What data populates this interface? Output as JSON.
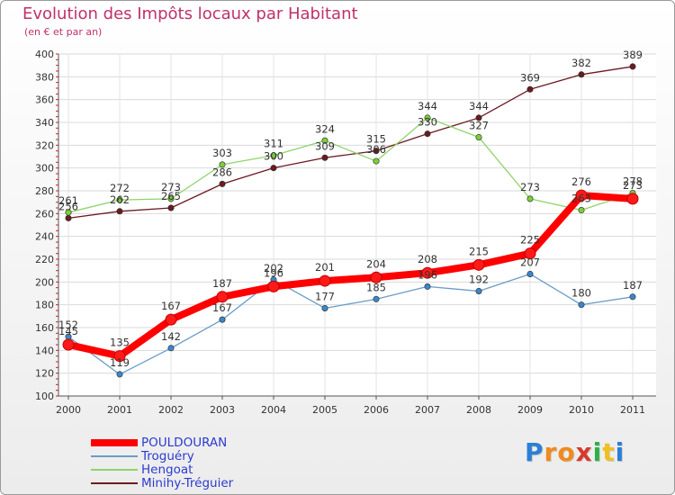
{
  "header": {
    "title": "Evolution des Impôts locaux par Habitant",
    "subtitle": "(en € et par an)"
  },
  "logo": {
    "text": "Proxiti",
    "letters": [
      "P",
      "r",
      "o",
      "x",
      "i",
      "t",
      "i"
    ],
    "colors": [
      "#2b7fd6",
      "#f08a1c",
      "#f08a1c",
      "#d63a2b",
      "#2bb04a",
      "#f0c01c",
      "#2b7fd6"
    ]
  },
  "chart_data": {
    "type": "line",
    "title": "Evolution des Impôts locaux par Habitant",
    "subtitle": "(en € et par an)",
    "xlabel": "",
    "ylabel": "",
    "ylim": [
      100,
      400
    ],
    "yticks": [
      100,
      120,
      140,
      160,
      180,
      200,
      220,
      240,
      260,
      280,
      300,
      320,
      340,
      360,
      380,
      400
    ],
    "categories": [
      "2000",
      "2001",
      "2002",
      "2003",
      "2004",
      "2005",
      "2006",
      "2007",
      "2008",
      "2009",
      "2010",
      "2011"
    ],
    "grid": true,
    "legend": "bottom-left",
    "series": [
      {
        "name": "Minihy-Tréguier",
        "color": "#6b1a22",
        "marker": "#6b1a22",
        "width": 1.3,
        "values": [
          256,
          262,
          265,
          286,
          300,
          309,
          315,
          330,
          344,
          369,
          382,
          389
        ],
        "labels": [
          "256",
          "262",
          "265",
          "286",
          "300",
          "309",
          "315",
          "330",
          "344",
          "369",
          "382",
          "389"
        ]
      },
      {
        "name": "Hengoat",
        "color": "#8fd36a",
        "marker": "#7ccf3a",
        "width": 1.3,
        "values": [
          261,
          272,
          273,
          303,
          311,
          324,
          306,
          344,
          327,
          273,
          263,
          278
        ],
        "labels": [
          "261",
          "272",
          "273",
          "303",
          "311",
          "324",
          "306",
          "344",
          "327",
          "273",
          "263",
          "278"
        ]
      },
      {
        "name": "Troguéry",
        "color": "#6a9cc8",
        "marker": "#3b86c9",
        "width": 1.3,
        "values": [
          152,
          119,
          142,
          167,
          202,
          177,
          185,
          196,
          192,
          207,
          180,
          187
        ],
        "labels": [
          "152",
          "119",
          "142",
          "167",
          "202",
          "177",
          "185",
          "196",
          "192",
          "207",
          "180",
          "187"
        ]
      },
      {
        "name": "POULDOURAN",
        "color": "#ff0000",
        "marker": "#ff1a1a",
        "width": 8,
        "values": [
          145,
          135,
          167,
          187,
          196,
          201,
          204,
          208,
          215,
          225,
          276,
          273
        ],
        "labels": [
          "145",
          "135",
          "167",
          "187",
          "196",
          "201",
          "204",
          "208",
          "215",
          "225",
          "276",
          "273"
        ]
      }
    ]
  },
  "legend": {
    "items": [
      {
        "label": "POULDOURAN",
        "color": "#ff0000",
        "thickness": 8
      },
      {
        "label": "Troguéry",
        "color": "#6a9cc8",
        "thickness": 2
      },
      {
        "label": "Hengoat",
        "color": "#8fd36a",
        "thickness": 2
      },
      {
        "label": "Minihy-Tréguier",
        "color": "#6b1a22",
        "thickness": 2
      }
    ]
  }
}
